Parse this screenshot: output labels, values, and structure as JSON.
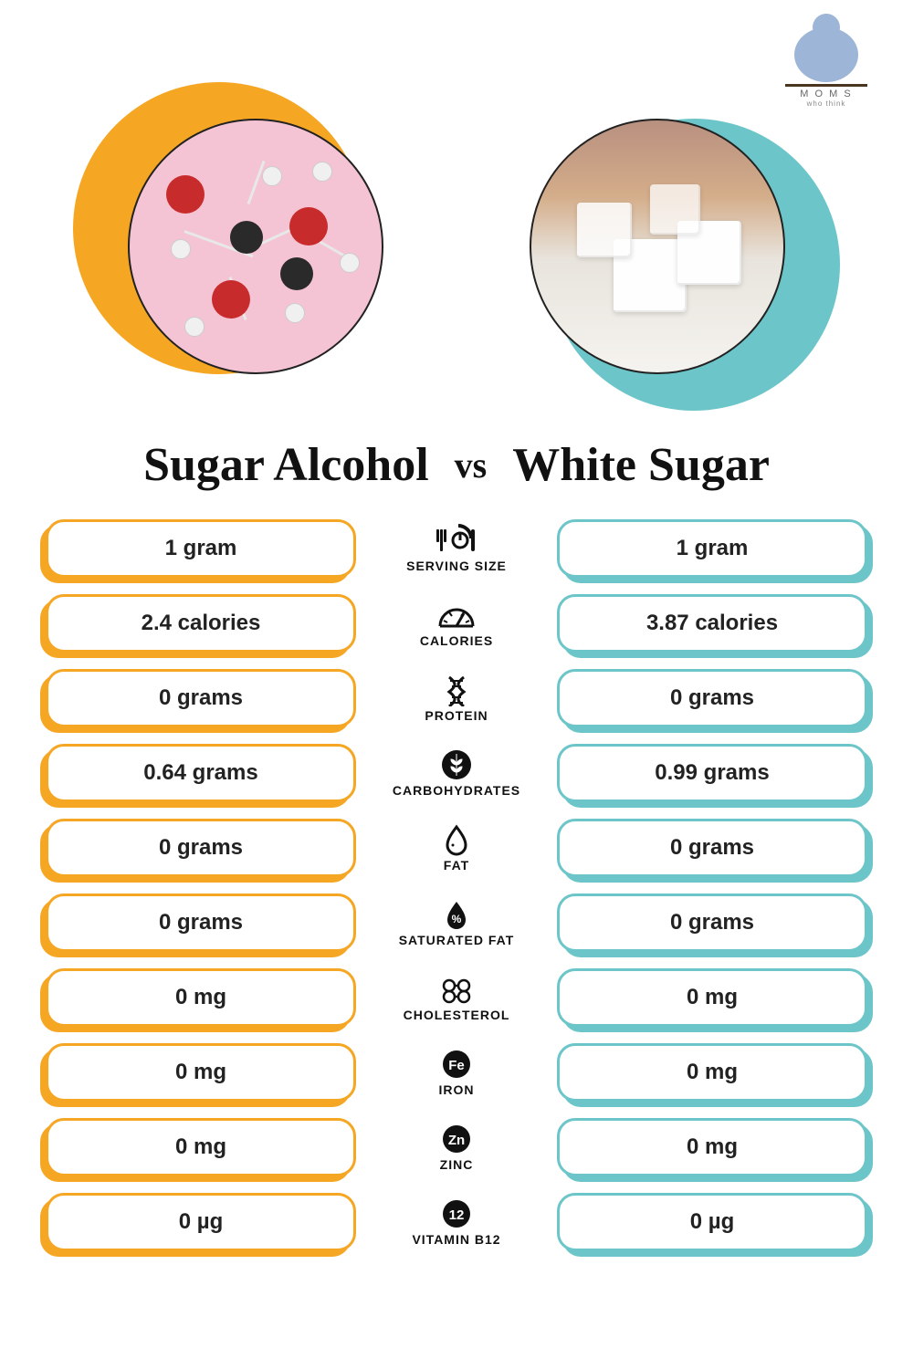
{
  "logo": {
    "line1": "M O M S",
    "line2": "who think"
  },
  "left": {
    "title": "Sugar Alcohol",
    "accent_color": "#f5a623",
    "photo_bg": "#f5c4d4"
  },
  "right": {
    "title": "White Sugar",
    "accent_color": "#6bc5c9",
    "photo_bg": "#e8e4dd"
  },
  "vs_label": "vs",
  "icon_color": "#111111",
  "label_fontsize": 14,
  "value_fontsize": 24,
  "rows": [
    {
      "label": "SERVING SIZE",
      "icon": "serving",
      "left": "1 gram",
      "right": "1 gram"
    },
    {
      "label": "CALORIES",
      "icon": "gauge",
      "left": "2.4 calories",
      "right": "3.87 calories"
    },
    {
      "label": "PROTEIN",
      "icon": "dna",
      "left": "0 grams",
      "right": "0 grams"
    },
    {
      "label": "CARBOHYDRATES",
      "icon": "wheat",
      "left": "0.64 grams",
      "right": "0.99 grams"
    },
    {
      "label": "FAT",
      "icon": "drop",
      "left": "0 grams",
      "right": "0 grams"
    },
    {
      "label": "SATURATED FAT",
      "icon": "dropfill",
      "left": "0 grams",
      "right": "0 grams"
    },
    {
      "label": "CHOLESTEROL",
      "icon": "molecule",
      "left": "0 mg",
      "right": "0 mg"
    },
    {
      "label": "IRON",
      "icon": "fe",
      "left": "0 mg",
      "right": "0 mg"
    },
    {
      "label": "ZINC",
      "icon": "zn",
      "left": "0 mg",
      "right": "0 mg"
    },
    {
      "label": "VITAMIN B12",
      "icon": "b12",
      "left": "0 µg",
      "right": "0 µg"
    }
  ]
}
